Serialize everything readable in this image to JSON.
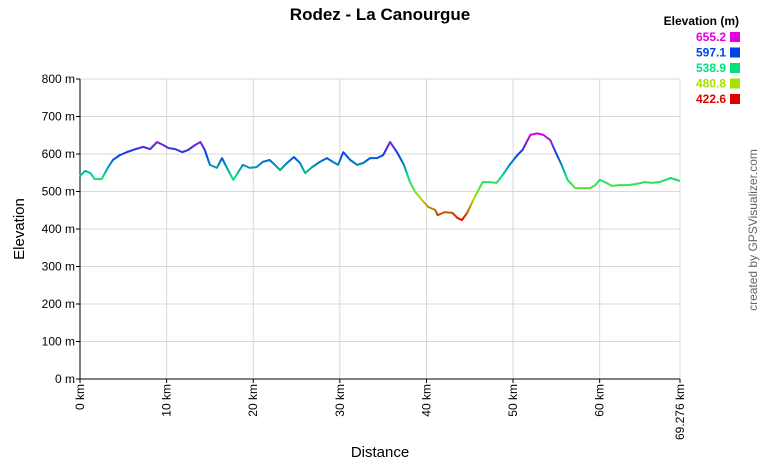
{
  "chart_data": {
    "type": "line",
    "title": "Rodez - La Canourgue",
    "xlabel": "Distance",
    "ylabel": "Elevation",
    "credit": "created by GPSVisualizer.com",
    "legend_title": "Elevation (m)",
    "color_scale": [
      {
        "value": 655.2,
        "color": "#e000e0"
      },
      {
        "value": 597.1,
        "color": "#0044e8"
      },
      {
        "value": 538.9,
        "color": "#00e080"
      },
      {
        "value": 480.8,
        "color": "#a8e000"
      },
      {
        "value": 422.6,
        "color": "#e00000"
      }
    ],
    "x": [
      0,
      0.6,
      1.2,
      1.7,
      2.5,
      3.2,
      3.8,
      4.6,
      5.4,
      6.4,
      7.3,
      8.1,
      8.9,
      9.6,
      10.2,
      11.0,
      11.8,
      12.5,
      13.3,
      13.9,
      14.4,
      15.0,
      15.8,
      16.4,
      17.1,
      17.7,
      18.2,
      18.8,
      19.6,
      20.4,
      21.1,
      21.9,
      22.5,
      23.1,
      23.9,
      24.7,
      25.4,
      26.0,
      26.8,
      27.7,
      28.5,
      29.2,
      29.8,
      30.4,
      31.2,
      32.0,
      32.7,
      33.5,
      34.3,
      35.0,
      35.8,
      36.6,
      37.4,
      38.1,
      38.7,
      39.5,
      40.2,
      41.0,
      41.3,
      42.1,
      43.0,
      43.6,
      44.1,
      44.7,
      45.4,
      46.0,
      46.5,
      47.3,
      48.1,
      48.8,
      49.6,
      50.5,
      51.1,
      52.0,
      52.8,
      53.5,
      54.3,
      54.8,
      55.6,
      56.3,
      57.2,
      58.1,
      58.9,
      59.5,
      60.0,
      60.6,
      61.4,
      62.3,
      63.3,
      64.2,
      65.2,
      66.0,
      66.9,
      67.6,
      68.2,
      69.276
    ],
    "values": [
      541,
      555,
      549,
      533,
      533,
      563,
      584,
      597,
      605,
      613,
      619,
      613,
      632,
      624,
      616,
      613,
      605,
      611,
      624,
      632,
      611,
      571,
      563,
      589,
      557,
      531,
      549,
      571,
      563,
      565,
      579,
      584,
      571,
      557,
      576,
      592,
      576,
      549,
      565,
      579,
      589,
      579,
      571,
      605,
      584,
      571,
      576,
      589,
      589,
      597,
      632,
      605,
      571,
      525,
      499,
      477,
      459,
      451,
      437,
      445,
      443,
      429,
      424,
      443,
      477,
      504,
      525,
      525,
      523,
      544,
      571,
      597,
      611,
      651,
      655,
      651,
      637,
      611,
      571,
      531,
      509,
      509,
      509,
      517,
      531,
      525,
      515,
      517,
      517,
      520,
      525,
      523,
      525,
      531,
      536,
      528
    ],
    "xlim": [
      0,
      69.276
    ],
    "xticks": [
      {
        "value": 0,
        "label": "0 km"
      },
      {
        "value": 10,
        "label": "10 km"
      },
      {
        "value": 20,
        "label": "20 km"
      },
      {
        "value": 30,
        "label": "30 km"
      },
      {
        "value": 40,
        "label": "40 km"
      },
      {
        "value": 50,
        "label": "50 km"
      },
      {
        "value": 60,
        "label": "60 km"
      },
      {
        "value": 69.276,
        "label": "69.276 km"
      }
    ],
    "ylim": [
      0,
      800
    ],
    "yticks": [
      {
        "value": 0,
        "label": "0 m"
      },
      {
        "value": 100,
        "label": "100 m"
      },
      {
        "value": 200,
        "label": "200 m"
      },
      {
        "value": 300,
        "label": "300 m"
      },
      {
        "value": 400,
        "label": "400 m"
      },
      {
        "value": 500,
        "label": "500 m"
      },
      {
        "value": 600,
        "label": "600 m"
      },
      {
        "value": 700,
        "label": "700 m"
      },
      {
        "value": 800,
        "label": "800 m"
      }
    ],
    "grid": true
  }
}
